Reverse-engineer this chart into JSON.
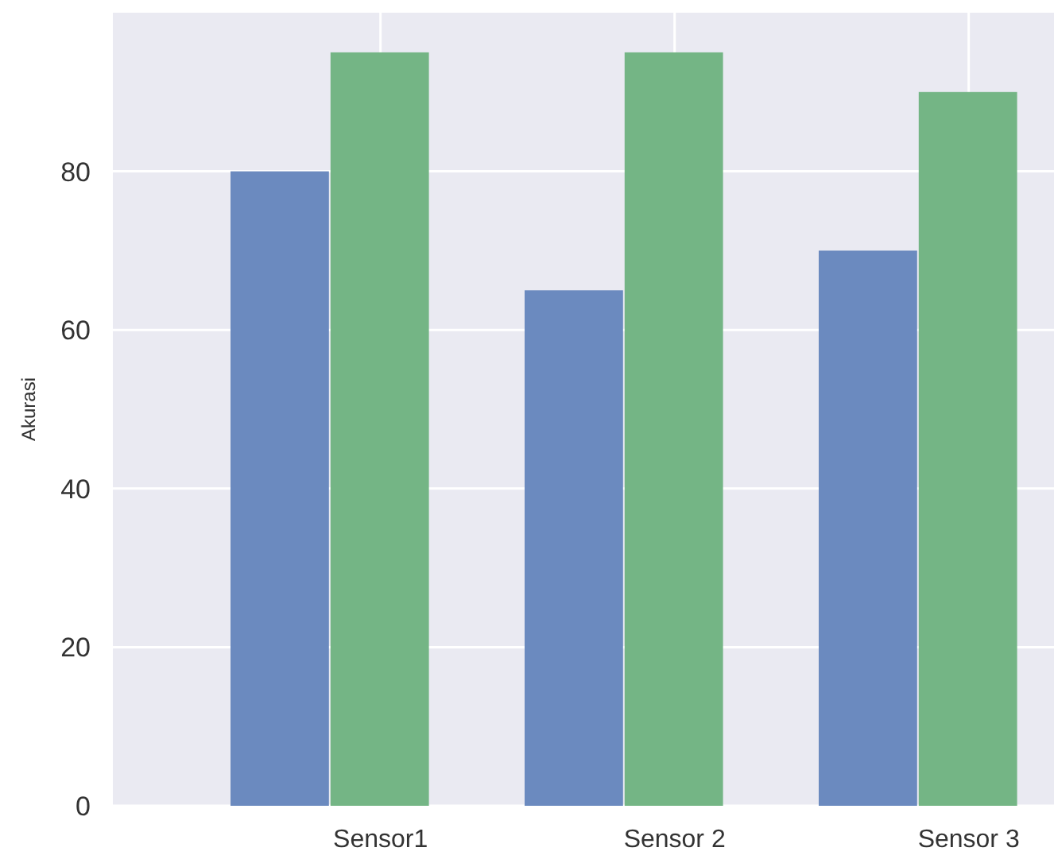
{
  "chart_data": {
    "type": "bar",
    "ylabel": "Akurasi",
    "categories": [
      "Sensor1",
      "Sensor 2",
      "Sensor 3"
    ],
    "series": [
      {
        "color": "#6b8abf",
        "values": [
          80,
          65,
          70
        ]
      },
      {
        "color": "#74b585",
        "values": [
          95,
          95,
          90
        ]
      }
    ],
    "ylim": [
      0,
      100
    ],
    "yticks": [
      0,
      20,
      40,
      60,
      80
    ],
    "grid": true
  }
}
